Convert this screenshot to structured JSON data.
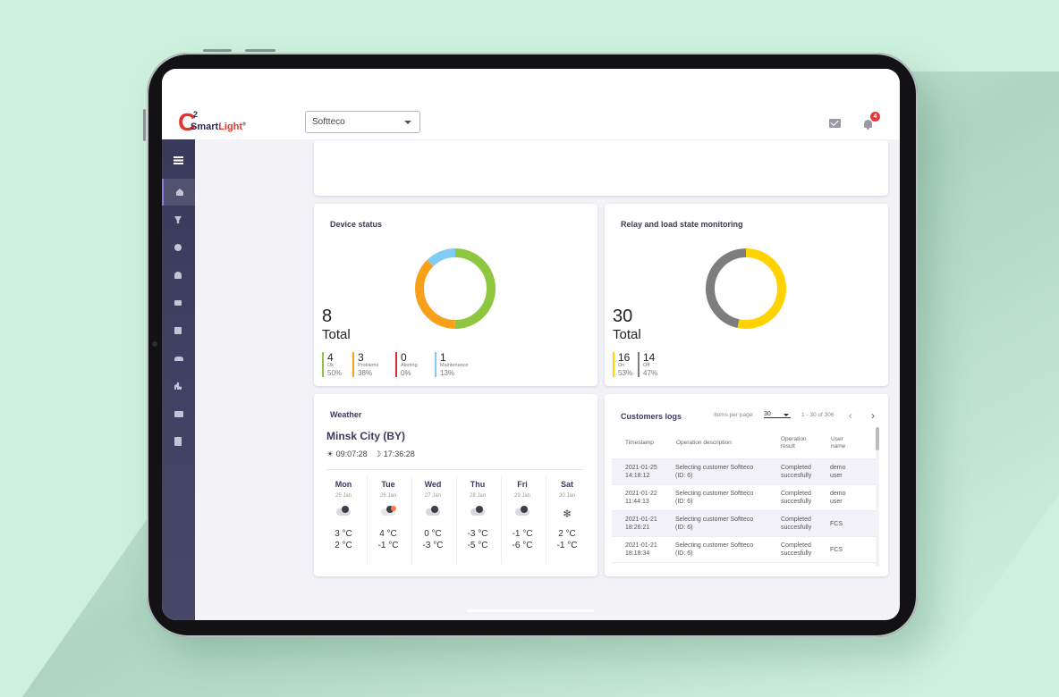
{
  "logo": {
    "letter": "C",
    "superscript": "2",
    "word_a": "Smart",
    "word_b": "Light",
    "mark": "®"
  },
  "header": {
    "customer_select": "Softteco",
    "notification_count": "4"
  },
  "sidebar": {
    "items": [
      "menu-icon",
      "home-icon",
      "lamp-icon",
      "radiation-icon",
      "bell-icon",
      "mail-icon",
      "chat-icon",
      "users-icon",
      "chart-icon",
      "folder-icon",
      "report-icon"
    ]
  },
  "device_status": {
    "title": "Device status",
    "total": "8",
    "total_label": "Total",
    "colors": {
      "ok": "#8ec63f",
      "problems": "#f9a01b",
      "alerting": "#d32f2f",
      "maintenance": "#81ccf4"
    },
    "legend": [
      {
        "n": "4",
        "label": "Ok",
        "pct": "50%"
      },
      {
        "n": "3",
        "label": "Problems",
        "pct": "38%"
      },
      {
        "n": "0",
        "label": "Alerting",
        "pct": "0%"
      },
      {
        "n": "1",
        "label": "Maintenance",
        "pct": "13%"
      }
    ]
  },
  "relay": {
    "title": "Relay and load state monitoring",
    "total": "30",
    "total_label": "Total",
    "colors": {
      "on": "#ffd200",
      "off": "#7d7d7d"
    },
    "legend": [
      {
        "n": "16",
        "label": "On",
        "pct": "53%"
      },
      {
        "n": "14",
        "label": "Off",
        "pct": "47%"
      }
    ]
  },
  "weather": {
    "title": "Weather",
    "city": "Minsk City (BY)",
    "sunrise": "09:07:28",
    "sunset": "17:36:28",
    "days": [
      {
        "d": "Mon",
        "date": "25 Jan",
        "hi": "3 °C",
        "lo": "2 °C",
        "icon": "cloud-icon"
      },
      {
        "d": "Tue",
        "date": "26 Jan",
        "hi": "4 °C",
        "lo": "-1 °C",
        "icon": "cloud-rain-icon"
      },
      {
        "d": "Wed",
        "date": "27 Jan",
        "hi": "0 °C",
        "lo": "-3 °C",
        "icon": "cloud-icon"
      },
      {
        "d": "Thu",
        "date": "28 Jan",
        "hi": "-3 °C",
        "lo": "-5 °C",
        "icon": "cloud-icon"
      },
      {
        "d": "Fri",
        "date": "29 Jan",
        "hi": "-1 °C",
        "lo": "-6 °C",
        "icon": "cloud-icon"
      },
      {
        "d": "Sat",
        "date": "30 Jan",
        "hi": "2 °C",
        "lo": "-1 °C",
        "icon": "snowflake-icon"
      }
    ]
  },
  "logs": {
    "title": "Customers logs",
    "items_per_page_label": "Items per page:",
    "items_per_page": "30",
    "range": "1 - 30 of 306",
    "headers": [
      "Timestamp",
      "Operation description",
      "Operation result",
      "User name"
    ],
    "rows": [
      {
        "ts1": "2021-01-25",
        "ts2": "14:18:12",
        "desc1": "Selecting customer Softteco",
        "desc2": "(ID: 6)",
        "res1": "Completed",
        "res2": "succesfully",
        "user1": "demo",
        "user2": "user"
      },
      {
        "ts1": "2021-01-22",
        "ts2": "11:44:13",
        "desc1": "Selecting customer Softteco",
        "desc2": "(ID: 6)",
        "res1": "Completed",
        "res2": "succesfully",
        "user1": "demo",
        "user2": "user"
      },
      {
        "ts1": "2021-01-21",
        "ts2": "18:26:21",
        "desc1": "Selecting customer Softteco",
        "desc2": "(ID: 6)",
        "res1": "Completed",
        "res2": "succesfully",
        "user1": "FCS",
        "user2": ""
      },
      {
        "ts1": "2021-01-21",
        "ts2": "18:18:34",
        "desc1": "Selecting customer Softteco",
        "desc2": "(ID: 6)",
        "res1": "Completed",
        "res2": "succesfully",
        "user1": "FCS",
        "user2": ""
      }
    ]
  }
}
